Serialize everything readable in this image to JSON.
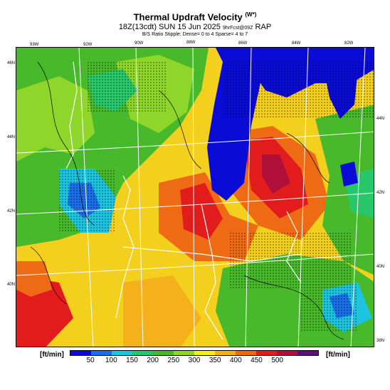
{
  "header": {
    "title": "Thermal Updraft Velocity",
    "title_sub": "(W*)",
    "line2_main": "18Z(13cdt) SUN 15 Jun 2025",
    "line2_small": "9hrFcst@09Z",
    "line2_model": "RAP",
    "line3": "B/S Ratio Stipple: Dense= 0 to 4  Sparse= 4 to 7"
  },
  "longitude_labels": [
    "93W",
    "92W",
    "90W",
    "88W",
    "86W",
    "84W",
    "82W"
  ],
  "latitude_labels_left": [
    "46N",
    "44N",
    "42N",
    "40N"
  ],
  "latitude_labels_right": [
    "44N",
    "42N",
    "40N",
    "38N"
  ],
  "legend": {
    "unit_left": "[ft/min]",
    "unit_right": "[ft/min]",
    "ticks": [
      "50",
      "100",
      "150",
      "200",
      "250",
      "300",
      "350",
      "400",
      "450",
      "500"
    ],
    "colors": [
      "#0b0bd8",
      "#1a6fe8",
      "#1cc4e0",
      "#27c76a",
      "#47b92a",
      "#8fd62a",
      "#f4f01e",
      "#f5b11c",
      "#ee6a14",
      "#e21c1c",
      "#b00f3a",
      "#5a0f7a"
    ]
  }
}
